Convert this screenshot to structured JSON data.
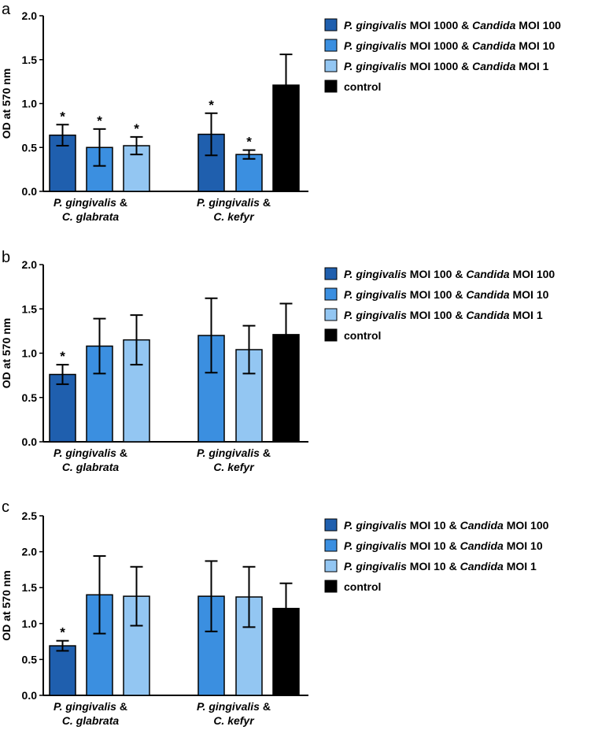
{
  "chart_data": [
    {
      "type": "bar",
      "panel_label": "a",
      "ylabel": "OD at 570 nm",
      "ylim": [
        0,
        2.0
      ],
      "yticks": [
        "0.0",
        "0.5",
        "1.0",
        "1.5",
        "2.0"
      ],
      "groups": [
        {
          "line1": "P. gingivalis",
          "amp": " &",
          "line2": "C. glabrata"
        },
        {
          "line1": "P. gingivalis",
          "amp": " &",
          "line2": "C. kefyr"
        }
      ],
      "legend": [
        {
          "b1": "P. gingivalis",
          "r1": " MOI 1000 & ",
          "b2": "Candida",
          "r2": " MOI 100",
          "color": "#1f5fae"
        },
        {
          "b1": "P. gingivalis",
          "r1": " MOI 1000 & ",
          "b2": "Candida",
          "r2": " MOI 10",
          "color": "#3b8fe0"
        },
        {
          "b1": "P. gingivalis",
          "r1": " MOI 1000 & ",
          "b2": "Candida",
          "r2": " MOI 1",
          "color": "#93c6f2"
        },
        {
          "b1": "",
          "r1": "control",
          "b2": "",
          "r2": "",
          "color": "#000000"
        }
      ],
      "bars": [
        {
          "series": 0,
          "slot": 0,
          "value": 0.64,
          "err": 0.12,
          "sig": "*"
        },
        {
          "series": 1,
          "slot": 1,
          "value": 0.5,
          "err": 0.21,
          "sig": "*"
        },
        {
          "series": 2,
          "slot": 2,
          "value": 0.52,
          "err": 0.1,
          "sig": "*"
        },
        {
          "series": 0,
          "slot": 4,
          "value": 0.65,
          "err": 0.24,
          "sig": "*"
        },
        {
          "series": 1,
          "slot": 5,
          "value": 0.42,
          "err": 0.05,
          "sig": "*"
        },
        {
          "series": 3,
          "slot": 6,
          "value": 1.21,
          "err": 0.35,
          "sig": ""
        }
      ]
    },
    {
      "type": "bar",
      "panel_label": "b",
      "ylabel": "OD at 570 nm",
      "ylim": [
        0,
        2.0
      ],
      "yticks": [
        "0.0",
        "0.5",
        "1.0",
        "1.5",
        "2.0"
      ],
      "groups": [
        {
          "line1": "P. gingivalis",
          "amp": " &",
          "line2": "C. glabrata"
        },
        {
          "line1": "P. gingivalis",
          "amp": " &",
          "line2": "C. kefyr"
        }
      ],
      "legend": [
        {
          "b1": "P. gingivalis",
          "r1": " MOI 100 & ",
          "b2": "Candida",
          "r2": " MOI 100",
          "color": "#1f5fae"
        },
        {
          "b1": "P. gingivalis",
          "r1": " MOI 100 & ",
          "b2": "Candida",
          "r2": " MOI 10",
          "color": "#3b8fe0"
        },
        {
          "b1": "P. gingivalis",
          "r1": " MOI 100 & ",
          "b2": "Candida",
          "r2": " MOI 1",
          "color": "#93c6f2"
        },
        {
          "b1": "",
          "r1": "control",
          "b2": "",
          "r2": "",
          "color": "#000000"
        }
      ],
      "bars": [
        {
          "series": 0,
          "slot": 0,
          "value": 0.76,
          "err": 0.11,
          "sig": "*"
        },
        {
          "series": 1,
          "slot": 1,
          "value": 1.08,
          "err": 0.31,
          "sig": ""
        },
        {
          "series": 2,
          "slot": 2,
          "value": 1.15,
          "err": 0.28,
          "sig": ""
        },
        {
          "series": 1,
          "slot": 4,
          "value": 1.2,
          "err": 0.42,
          "sig": ""
        },
        {
          "series": 2,
          "slot": 5,
          "value": 1.04,
          "err": 0.27,
          "sig": ""
        },
        {
          "series": 3,
          "slot": 6,
          "value": 1.21,
          "err": 0.35,
          "sig": ""
        }
      ]
    },
    {
      "type": "bar",
      "panel_label": "c",
      "ylabel": "OD at 570 nm",
      "ylim": [
        0,
        2.5
      ],
      "yticks": [
        "0.0",
        "0.5",
        "1.0",
        "1.5",
        "2.0",
        "2.5"
      ],
      "groups": [
        {
          "line1": "P. gingivalis",
          "amp": " &",
          "line2": "C. glabrata"
        },
        {
          "line1": "P. gingivalis",
          "amp": " &",
          "line2": "C. kefyr"
        }
      ],
      "legend": [
        {
          "b1": "P. gingivalis",
          "r1": " MOI 10 & ",
          "b2": "Candida",
          "r2": " MOI 100",
          "color": "#1f5fae"
        },
        {
          "b1": "P. gingivalis",
          "r1": " MOI 10 & ",
          "b2": "Candida",
          "r2": " MOI 10",
          "color": "#3b8fe0"
        },
        {
          "b1": "P. gingivalis",
          "r1": " MOI 10 & ",
          "b2": "Candida",
          "r2": " MOI 1",
          "color": "#93c6f2"
        },
        {
          "b1": "",
          "r1": "control",
          "b2": "",
          "r2": "",
          "color": "#000000"
        }
      ],
      "bars": [
        {
          "series": 0,
          "slot": 0,
          "value": 0.69,
          "err": 0.07,
          "sig": "*"
        },
        {
          "series": 1,
          "slot": 1,
          "value": 1.4,
          "err": 0.54,
          "sig": ""
        },
        {
          "series": 2,
          "slot": 2,
          "value": 1.38,
          "err": 0.41,
          "sig": ""
        },
        {
          "series": 1,
          "slot": 4,
          "value": 1.38,
          "err": 0.49,
          "sig": ""
        },
        {
          "series": 2,
          "slot": 5,
          "value": 1.37,
          "err": 0.42,
          "sig": ""
        },
        {
          "series": 3,
          "slot": 6,
          "value": 1.21,
          "err": 0.35,
          "sig": ""
        }
      ]
    }
  ]
}
